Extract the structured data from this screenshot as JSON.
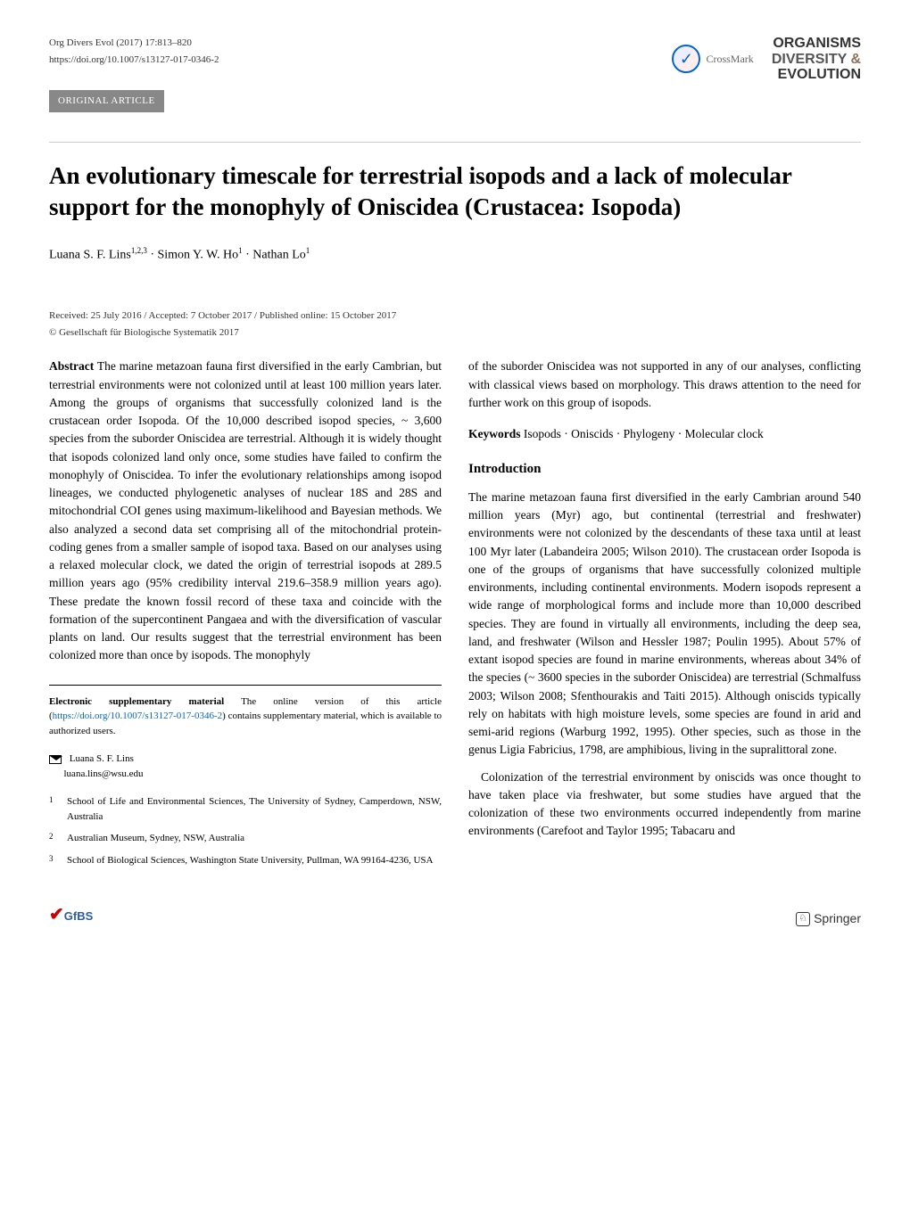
{
  "journal_ref": "Org Divers Evol (2017) 17:813–820",
  "doi": "https://doi.org/10.1007/s13127-017-0346-2",
  "article_type": "ORIGINAL ARTICLE",
  "crossmark_label": "CrossMark",
  "journal_name": {
    "line1": "ORGANISMS",
    "line2a": "DIVERSITY",
    "line2b": "&",
    "line3": "EVOLUTION"
  },
  "title": "An evolutionary timescale for terrestrial isopods and a lack of molecular support for the monophyly of Oniscidea (Crustacea: Isopoda)",
  "authors_html": "Luana S. F. Lins<sup>1,2,3</sup> · Simon Y. W. Ho<sup>1</sup> · Nathan Lo<sup>1</sup>",
  "dates": "Received: 25 July 2016 / Accepted: 7 October 2017 / Published online: 15 October 2017",
  "copyright": "© Gesellschaft für Biologische Systematik 2017",
  "abstract_label": "Abstract",
  "abstract_text_left": " The marine metazoan fauna first diversified in the early Cambrian, but terrestrial environments were not colonized until at least 100 million years later. Among the groups of organisms that successfully colonized land is the crustacean order Isopoda. Of the 10,000 described isopod species, ~ 3,600 species from the suborder Oniscidea are terrestrial. Although it is widely thought that isopods colonized land only once, some studies have failed to confirm the monophyly of Oniscidea. To infer the evolutionary relationships among isopod lineages, we conducted phylogenetic analyses of nuclear 18S and 28S and mitochondrial COI genes using maximum-likelihood and Bayesian methods. We also analyzed a second data set comprising all of the mitochondrial protein-coding genes from a smaller sample of isopod taxa. Based on our analyses using a relaxed molecular clock, we dated the origin of terrestrial isopods at 289.5 million years ago (95% credibility interval 219.6–358.9 million years ago). These predate the known fossil record of these taxa and coincide with the formation of the supercontinent Pangaea and with the diversification of vascular plants on land. Our results suggest that the terrestrial environment has been colonized more than once by isopods. The monophyly",
  "abstract_text_right": "of the suborder Oniscidea was not supported in any of our analyses, conflicting with classical views based on morphology. This draws attention to the need for further work on this group of isopods.",
  "keywords_label": "Keywords",
  "keywords": " Isopods · Oniscids · Phylogeny · Molecular clock",
  "intro_heading": "Introduction",
  "intro_text": "The marine metazoan fauna first diversified in the early Cambrian around 540 million years (Myr) ago, but continental (terrestrial and freshwater) environments were not colonized by the descendants of these taxa until at least 100 Myr later (Labandeira 2005; Wilson 2010). The crustacean order Isopoda is one of the groups of organisms that have successfully colonized multiple environments, including continental environments. Modern isopods represent a wide range of morphological forms and include more than 10,000 described species. They are found in virtually all environments, including the deep sea, land, and freshwater (Wilson and Hessler 1987; Poulin 1995). About 57% of extant isopod species are found in marine environments, whereas about 34% of the species (~ 3600 species in the suborder Oniscidea) are terrestrial (Schmalfuss 2003; Wilson 2008; Sfenthourakis and Taiti 2015). Although oniscids typically rely on habitats with high moisture levels, some species are found in arid and semi-arid regions (Warburg 1992, 1995). Other species, such as those in the genus Ligia Fabricius, 1798, are amphibious, living in the supralittoral zone.",
  "intro_text_p2": "Colonization of the terrestrial environment by oniscids was once thought to have taken place via freshwater, but some studies have argued that the colonization of these two environments occurred independently from marine environments (Carefoot and Taylor 1995; Tabacaru and",
  "supp_label": "Electronic supplementary material",
  "supp_text_a": " The online version of this article (",
  "supp_link": "https://doi.org/10.1007/s13127-017-0346-2",
  "supp_text_b": ") contains supplementary material, which is available to authorized users.",
  "corresp": {
    "name": "Luana S. F. Lins",
    "email": "luana.lins@wsu.edu"
  },
  "affiliations": [
    {
      "num": "1",
      "text": "School of Life and Environmental Sciences, The University of Sydney, Camperdown, NSW, Australia"
    },
    {
      "num": "2",
      "text": "Australian Museum, Sydney, NSW, Australia"
    },
    {
      "num": "3",
      "text": "School of Biological Sciences, Washington State University, Pullman, WA 99164-4236, USA"
    }
  ],
  "gfbs": "GfBS",
  "springer": "Springer",
  "colors": {
    "background": "#ffffff",
    "text": "#000000",
    "link": "#0066cc",
    "article_type_bg": "#888888",
    "article_type_fg": "#ffffff",
    "divider": "#cccccc"
  }
}
